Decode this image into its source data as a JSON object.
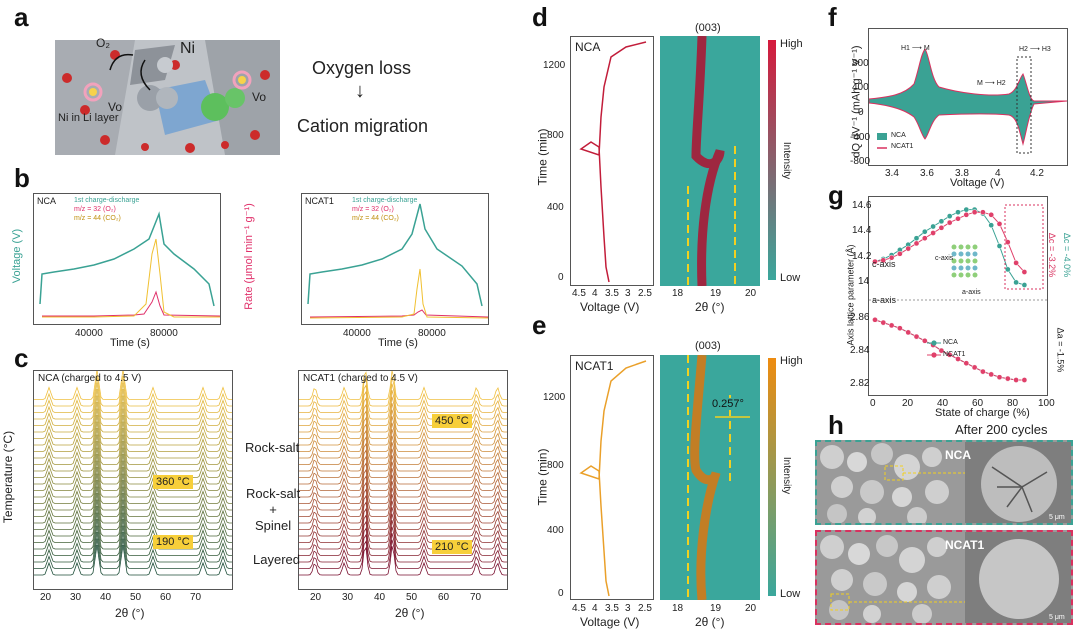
{
  "labels": {
    "a": "a",
    "b": "b",
    "c": "c",
    "d": "d",
    "e": "e",
    "f": "f",
    "g": "g",
    "h": "h"
  },
  "panel_a": {
    "o2": "O₂",
    "ni": "Ni",
    "vo_left": "Vo",
    "vo_right": "Vo",
    "ni_in_li": "Ni in Li layer",
    "oxygen_loss": "Oxygen loss",
    "arrow": "↓",
    "cation_migration": "Cation migration"
  },
  "panel_b": {
    "left": {
      "title": "NCA",
      "legend": [
        "1st charge-discharge",
        "m/z = 32 (O₂)",
        "m/z = 44 (CO₂)"
      ]
    },
    "right": {
      "title": "NCAT1",
      "legend": [
        "1st charge-discharge",
        "m/z = 32 (O₂)",
        "m/z = 44 (CO₂)"
      ]
    },
    "xlabel": "Time (s)",
    "xticks": [
      "40000",
      "80000"
    ],
    "ylabel_left": "Voltage (V)",
    "ylabel_right": "Rate (μmol min⁻¹ g⁻¹)",
    "colors": {
      "voltage": "#3aa294",
      "o2": "#e0306a",
      "co2": "#f0c030"
    }
  },
  "panel_c": {
    "left_title": "NCA (charged to 4.5 V)",
    "right_title": "NCAT1 (charged to 4.5 V)",
    "temp_left_1": "360 °C",
    "temp_left_2": "190 °C",
    "temp_right_1": "450 °C",
    "temp_right_2": "210 °C",
    "phase_1": "Rock-salt",
    "phase_2": "Rock-salt\n+\nSpinel",
    "phase_3": "Layered",
    "ylabel": "Temperature (°C)",
    "xlabel": "2θ (°)",
    "xticks": [
      "20",
      "30",
      "40",
      "50",
      "60",
      "70"
    ]
  },
  "panel_d": {
    "title": "NCA",
    "peak": "(003)",
    "ylabel": "Time (min)",
    "yticks": [
      "1200",
      "800",
      "400",
      "0"
    ],
    "xlabel_v": "Voltage (V)",
    "xticks_v": [
      "4.5",
      "4",
      "3.5",
      "3",
      "2.5"
    ],
    "xlabel_t": "2θ (°)",
    "xticks_t": [
      "18",
      "19",
      "20"
    ],
    "cbar_high": "High",
    "cbar_low": "Low",
    "cbar_label": "Intensity"
  },
  "panel_e": {
    "title": "NCAT1",
    "peak": "(003)",
    "ylabel": "Time (min)",
    "yticks": [
      "1200",
      "800",
      "400",
      "0"
    ],
    "shift": "0.257°",
    "xlabel_v": "Voltage (V)",
    "xticks_v": [
      "4.5",
      "4",
      "3.5",
      "3",
      "2.5"
    ],
    "xlabel_t": "2θ (°)",
    "xticks_t": [
      "18",
      "19",
      "20"
    ],
    "cbar_high": "High",
    "cbar_low": "Low",
    "cbar_label": "Intensity"
  },
  "panel_f": {
    "ylabel": "dQ dV⁻¹ (mAh g⁻¹ V⁻¹)",
    "xlabel": "Voltage (V)",
    "xticks": [
      "3.4",
      "3.6",
      "3.8",
      "4",
      "4.2"
    ],
    "yticks": [
      "800",
      "400",
      "0",
      "-400",
      "-800"
    ],
    "ann1": "H1 ⟶ M",
    "ann2": "M ⟶ H2",
    "ann3": "H2 ⟶ H3",
    "legend": [
      "NCA",
      "NCAT1"
    ]
  },
  "panel_g": {
    "ylabel": "Axis lattice parameter (Å)",
    "xlabel": "State of charge (%)",
    "xticks": [
      "0",
      "20",
      "40",
      "60",
      "80",
      "100"
    ],
    "yticks_top": [
      "14.6",
      "14.4",
      "14.2",
      "14"
    ],
    "yticks_bot": [
      "2.86",
      "2.84",
      "2.82"
    ],
    "c_axis": "c-axis",
    "a_axis": "a-axis",
    "c_inset": "c-axis",
    "a_inset": "a-axis",
    "dc_ncat1": "Δc = -3.2%",
    "dc_nca": "Δc = -4.0%",
    "da": "Δa = -1.5%",
    "legend": [
      "NCA",
      "NCAT1"
    ],
    "chart_data": {
      "type": "scatter",
      "x": [
        0,
        5,
        10,
        15,
        20,
        25,
        30,
        35,
        40,
        45,
        50,
        55,
        60,
        65,
        70,
        75,
        80,
        85,
        90
      ],
      "series": [
        {
          "name": "NCA",
          "c": [
            14.18,
            14.2,
            14.23,
            14.27,
            14.31,
            14.36,
            14.41,
            14.45,
            14.49,
            14.53,
            14.56,
            14.58,
            14.58,
            14.55,
            14.46,
            14.3,
            14.12,
            14.02,
            14.0
          ],
          "a": [
            2.868,
            2.866,
            2.864,
            2.862,
            2.859,
            2.856,
            2.853,
            2.85,
            2.846,
            2.843,
            2.84,
            2.837,
            2.834,
            2.831,
            2.829,
            2.827,
            2.826,
            2.825,
            2.825
          ]
        },
        {
          "name": "NCAT1",
          "c": [
            14.18,
            14.19,
            14.21,
            14.24,
            14.28,
            14.32,
            14.36,
            14.4,
            14.44,
            14.48,
            14.51,
            14.54,
            14.56,
            14.56,
            14.54,
            14.47,
            14.33,
            14.17,
            14.1
          ],
          "a": [
            2.868,
            2.866,
            2.864,
            2.862,
            2.859,
            2.856,
            2.853,
            2.85,
            2.846,
            2.843,
            2.84,
            2.837,
            2.834,
            2.831,
            2.829,
            2.827,
            2.826,
            2.825,
            2.825
          ]
        }
      ]
    }
  },
  "panel_h": {
    "title": "After 200 cycles",
    "nca": "NCA",
    "ncat1": "NCAT1",
    "scale": "5 μm"
  }
}
